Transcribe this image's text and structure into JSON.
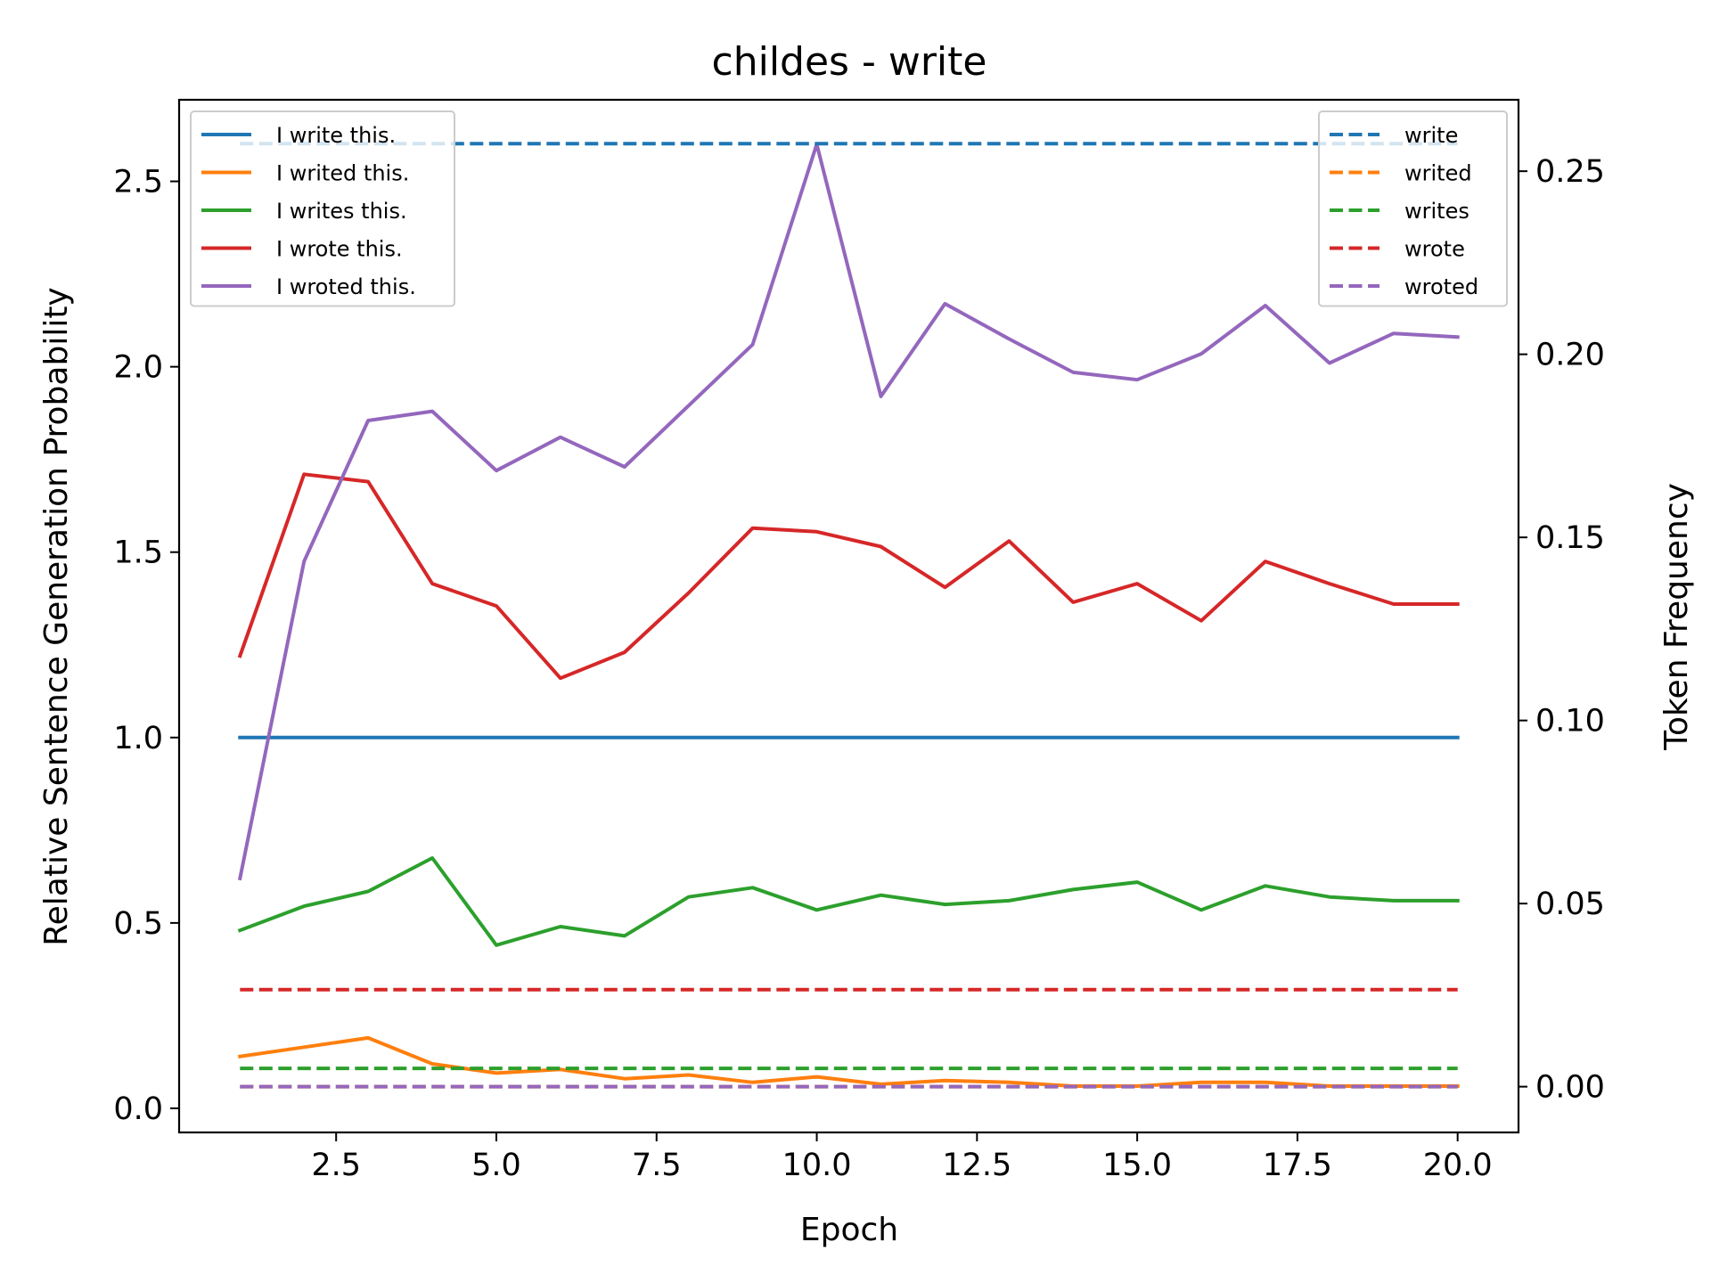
{
  "chart_data": {
    "type": "line",
    "title": "childes - write",
    "xlabel": "Epoch",
    "ylabel": "Relative Sentence Generation Probability",
    "ylabel_right": "Token Frequency",
    "xlim": [
      0.05,
      20.95
    ],
    "ylim": [
      -0.065,
      2.72
    ],
    "ylim_right": [
      -0.0125,
      0.2695
    ],
    "x_ticks": [
      2.5,
      5.0,
      7.5,
      10.0,
      12.5,
      15.0,
      17.5,
      20.0
    ],
    "x_tick_labels": [
      "2.5",
      "5.0",
      "7.5",
      "10.0",
      "12.5",
      "15.0",
      "17.5",
      "20.0"
    ],
    "y_ticks": [
      0.0,
      0.5,
      1.0,
      1.5,
      2.0,
      2.5
    ],
    "y_tick_labels": [
      "0.0",
      "0.5",
      "1.0",
      "1.5",
      "2.0",
      "2.5"
    ],
    "y_ticks_right": [
      0.0,
      0.05,
      0.1,
      0.15,
      0.2,
      0.25
    ],
    "y_tick_labels_right": [
      "0.00",
      "0.05",
      "0.10",
      "0.15",
      "0.20",
      "0.25"
    ],
    "grid": false,
    "legend_left_placement": "upper-left",
    "legend_right_placement": "upper-right",
    "x": [
      1,
      2,
      3,
      4,
      5,
      6,
      7,
      8,
      9,
      10,
      11,
      12,
      13,
      14,
      15,
      16,
      17,
      18,
      19,
      20
    ],
    "series": [
      {
        "name": "I write this.",
        "axis": "left",
        "style": "solid",
        "color": "#1f77b4",
        "values": [
          1,
          1,
          1,
          1,
          1,
          1,
          1,
          1,
          1,
          1,
          1,
          1,
          1,
          1,
          1,
          1,
          1,
          1,
          1,
          1
        ]
      },
      {
        "name": "I writed this.",
        "axis": "left",
        "style": "solid",
        "color": "#ff7f0e",
        "values": [
          0.14,
          0.165,
          0.19,
          0.12,
          0.095,
          0.105,
          0.08,
          0.09,
          0.07,
          0.085,
          0.065,
          0.075,
          0.07,
          0.06,
          0.06,
          0.07,
          0.07,
          0.06,
          0.06,
          0.06
        ]
      },
      {
        "name": "I writes this.",
        "axis": "left",
        "style": "solid",
        "color": "#2ca02c",
        "values": [
          0.48,
          0.545,
          0.585,
          0.675,
          0.44,
          0.49,
          0.465,
          0.57,
          0.595,
          0.535,
          0.575,
          0.55,
          0.56,
          0.59,
          0.61,
          0.535,
          0.6,
          0.57,
          0.56,
          0.56
        ]
      },
      {
        "name": "I wrote this.",
        "axis": "left",
        "style": "solid",
        "color": "#d62728",
        "values": [
          1.22,
          1.71,
          1.69,
          1.415,
          1.355,
          1.16,
          1.23,
          1.39,
          1.565,
          1.555,
          1.515,
          1.405,
          1.53,
          1.365,
          1.415,
          1.315,
          1.475,
          1.415,
          1.36,
          1.36
        ]
      },
      {
        "name": "I wroted this.",
        "axis": "left",
        "style": "solid",
        "color": "#9467bd",
        "values": [
          0.62,
          1.475,
          1.855,
          1.88,
          1.72,
          1.81,
          1.73,
          1.895,
          2.06,
          2.6,
          1.92,
          2.17,
          2.075,
          1.985,
          1.965,
          2.035,
          2.165,
          2.01,
          2.09,
          2.08
        ]
      },
      {
        "name": "write",
        "axis": "right",
        "style": "dashed",
        "color": "#1f77b4",
        "values": [
          0.2575,
          0.2575,
          0.2575,
          0.2575,
          0.2575,
          0.2575,
          0.2575,
          0.2575,
          0.2575,
          0.2575,
          0.2575,
          0.2575,
          0.2575,
          0.2575,
          0.2575,
          0.2575,
          0.2575,
          0.2575,
          0.2575,
          0.2575
        ]
      },
      {
        "name": "writed",
        "axis": "right",
        "style": "dashed",
        "color": "#ff7f0e",
        "values": [
          0,
          0,
          0,
          0,
          0,
          0,
          0,
          0,
          0,
          0,
          0,
          0,
          0,
          0,
          0,
          0,
          0,
          0,
          0,
          0
        ]
      },
      {
        "name": "writes",
        "axis": "right",
        "style": "dashed",
        "color": "#2ca02c",
        "values": [
          0.005,
          0.005,
          0.005,
          0.005,
          0.005,
          0.005,
          0.005,
          0.005,
          0.005,
          0.005,
          0.005,
          0.005,
          0.005,
          0.005,
          0.005,
          0.005,
          0.005,
          0.005,
          0.005,
          0.005
        ]
      },
      {
        "name": "wrote",
        "axis": "right",
        "style": "dashed",
        "color": "#d62728",
        "values": [
          0.0265,
          0.0265,
          0.0265,
          0.0265,
          0.0265,
          0.0265,
          0.0265,
          0.0265,
          0.0265,
          0.0265,
          0.0265,
          0.0265,
          0.0265,
          0.0265,
          0.0265,
          0.0265,
          0.0265,
          0.0265,
          0.0265,
          0.0265
        ]
      },
      {
        "name": "wroted",
        "axis": "right",
        "style": "dashed",
        "color": "#9467bd",
        "values": [
          0,
          0,
          0,
          0,
          0,
          0,
          0,
          0,
          0,
          0,
          0,
          0,
          0,
          0,
          0,
          0,
          0,
          0,
          0,
          0
        ]
      }
    ]
  }
}
